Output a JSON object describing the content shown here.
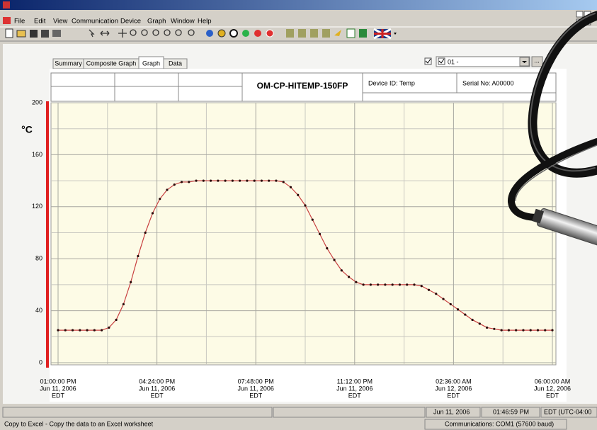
{
  "menu": [
    "File",
    "Edit",
    "View",
    "Communication",
    "Device",
    "Graph",
    "Window",
    "Help"
  ],
  "tabs": [
    "Summary",
    "Composite Graph",
    "Graph",
    "Data"
  ],
  "device_selector": {
    "value": "01 -",
    "browse": "..."
  },
  "header": {
    "model": "OM-CP-HITEMP-150FP",
    "device_id": "Device ID: Temp",
    "serial": "Serial No: A00000"
  },
  "chart_data": {
    "type": "line",
    "y_label": "°C",
    "x": [
      "2006-06-11T13:00:00",
      "2006-06-11T13:15:00",
      "2006-06-11T13:30:00",
      "2006-06-11T13:45:00",
      "2006-06-11T14:00:00",
      "2006-06-11T14:15:00",
      "2006-06-11T14:30:00",
      "2006-06-11T14:45:00",
      "2006-06-11T15:00:00",
      "2006-06-11T15:15:00",
      "2006-06-11T15:30:00",
      "2006-06-11T15:45:00",
      "2006-06-11T16:00:00",
      "2006-06-11T16:15:00",
      "2006-06-11T16:30:00",
      "2006-06-11T16:45:00",
      "2006-06-11T17:00:00",
      "2006-06-11T17:15:00",
      "2006-06-11T17:30:00",
      "2006-06-11T17:45:00",
      "2006-06-11T18:00:00",
      "2006-06-11T18:15:00",
      "2006-06-11T18:30:00",
      "2006-06-11T18:45:00",
      "2006-06-11T19:00:00",
      "2006-06-11T19:15:00",
      "2006-06-11T19:30:00",
      "2006-06-11T19:45:00",
      "2006-06-11T20:00:00",
      "2006-06-11T20:15:00",
      "2006-06-11T20:30:00",
      "2006-06-11T20:45:00",
      "2006-06-11T21:00:00",
      "2006-06-11T21:15:00",
      "2006-06-11T21:30:00",
      "2006-06-11T21:45:00",
      "2006-06-11T22:00:00",
      "2006-06-11T22:15:00",
      "2006-06-11T22:30:00",
      "2006-06-11T22:45:00",
      "2006-06-11T23:00:00",
      "2006-06-11T23:15:00",
      "2006-06-11T23:30:00",
      "2006-06-11T23:45:00",
      "2006-06-12T00:00:00",
      "2006-06-12T00:15:00",
      "2006-06-12T00:30:00",
      "2006-06-12T00:45:00",
      "2006-06-12T01:00:00",
      "2006-06-12T01:15:00",
      "2006-06-12T01:30:00",
      "2006-06-12T01:45:00",
      "2006-06-12T02:00:00",
      "2006-06-12T02:15:00",
      "2006-06-12T02:30:00",
      "2006-06-12T02:45:00",
      "2006-06-12T03:00:00",
      "2006-06-12T03:15:00",
      "2006-06-12T03:30:00",
      "2006-06-12T03:45:00",
      "2006-06-12T04:00:00",
      "2006-06-12T04:15:00",
      "2006-06-12T04:30:00",
      "2006-06-12T04:45:00",
      "2006-06-12T05:00:00",
      "2006-06-12T05:15:00",
      "2006-06-12T05:30:00",
      "2006-06-12T05:45:00",
      "2006-06-12T06:00:00"
    ],
    "values": [
      25,
      25,
      25,
      25,
      25,
      25,
      25,
      27,
      33,
      45,
      62,
      82,
      100,
      115,
      126,
      133,
      137,
      139,
      139,
      140,
      140,
      140,
      140,
      140,
      140,
      140,
      140,
      140,
      140,
      140,
      140,
      139,
      135,
      129,
      121,
      110,
      99,
      88,
      79,
      71,
      66,
      62,
      60,
      60,
      60,
      60,
      60,
      60,
      60,
      60,
      59,
      56,
      53,
      49,
      45,
      41,
      37,
      33,
      30,
      27,
      26,
      25,
      25,
      25,
      25,
      25,
      25,
      25,
      25
    ],
    "color": "#c84040",
    "marker_color": "#2a0a0a",
    "axis_color": "#e02020",
    "ylim": [
      0,
      200
    ],
    "yticks": [
      0,
      40,
      80,
      120,
      160,
      200
    ],
    "xlim": [
      "2006-06-11T13:00:00",
      "2006-06-12T06:00:00"
    ],
    "xticks": [
      {
        "value": "2006-06-11T13:00:00",
        "label": [
          "01:00:00 PM",
          "Jun 11, 2006",
          "EDT"
        ]
      },
      {
        "value": "2006-06-11T16:24:00",
        "label": [
          "04:24:00 PM",
          "Jun 11, 2006",
          "EDT"
        ]
      },
      {
        "value": "2006-06-11T19:48:00",
        "label": [
          "07:48:00 PM",
          "Jun 11, 2006",
          "EDT"
        ]
      },
      {
        "value": "2006-06-11T23:12:00",
        "label": [
          "11:12:00 PM",
          "Jun 11, 2006",
          "EDT"
        ]
      },
      {
        "value": "2006-06-12T02:36:00",
        "label": [
          "02:36:00 AM",
          "Jun 12, 2006",
          "EDT"
        ]
      },
      {
        "value": "2006-06-12T06:00:00",
        "label": [
          "06:00:00 AM",
          "Jun 12, 2006",
          "EDT"
        ]
      }
    ],
    "grid": true
  },
  "status": {
    "date": "Jun 11, 2006",
    "time": "01:46:59 PM",
    "zone": "EDT (UTC-04:00",
    "hint": "Copy to Excel - Copy the data to an Excel worksheet",
    "comm": "Communications: COM1 (57600 baud)"
  }
}
